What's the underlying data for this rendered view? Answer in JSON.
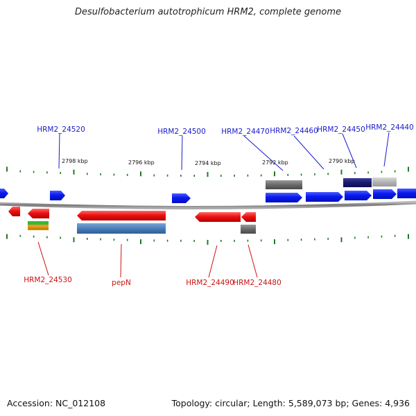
{
  "title": "Desulfobacterium autotrophicum HRM2, complete genome",
  "footer": {
    "accession": "Accession: NC_012108",
    "summary": "Topology: circular; Length: 5,589,073 bp; Genes: 4,936"
  },
  "colors": {
    "forward_gene": "#0a1af0",
    "reverse_gene": "#ee1111",
    "tick": "#1f7a1f",
    "backbone": "#888888",
    "forward_label": "#1a1acc",
    "reverse_label": "#cc1111"
  },
  "scale_labels": [
    "2798 kbp",
    "2796 kbp",
    "2794 kbp",
    "2792 kbp",
    "2790 kbp"
  ],
  "forward_labels": [
    "HRM2_24520",
    "HRM2_24500",
    "HRM2_24470",
    "HRM2_24460",
    "HRM2_24450",
    "HRM2_24440"
  ],
  "reverse_labels": [
    "HRM2_24530",
    "pepN",
    "HRM2_24490",
    "HRM2_24480"
  ]
}
